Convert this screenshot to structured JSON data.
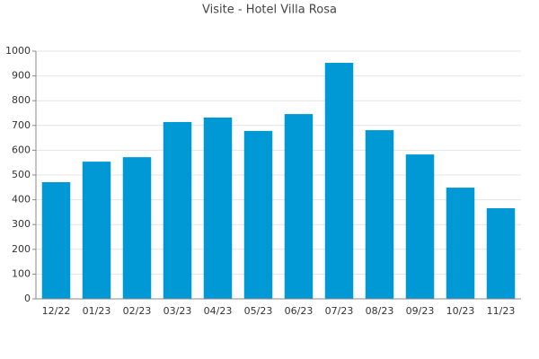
{
  "chart_data": {
    "type": "bar",
    "title": "Visite - Hotel Villa Rosa",
    "categories": [
      "12/22",
      "01/23",
      "02/23",
      "03/23",
      "04/23",
      "05/23",
      "06/23",
      "07/23",
      "08/23",
      "09/23",
      "10/23",
      "11/23"
    ],
    "values": [
      471,
      554,
      572,
      714,
      732,
      678,
      746,
      953,
      681,
      583,
      449,
      366
    ],
    "color": "#0099d5",
    "ylim": [
      0,
      1000
    ],
    "yticks": [
      0,
      100,
      200,
      300,
      400,
      500,
      600,
      700,
      800,
      900,
      1000
    ],
    "grid": true
  }
}
